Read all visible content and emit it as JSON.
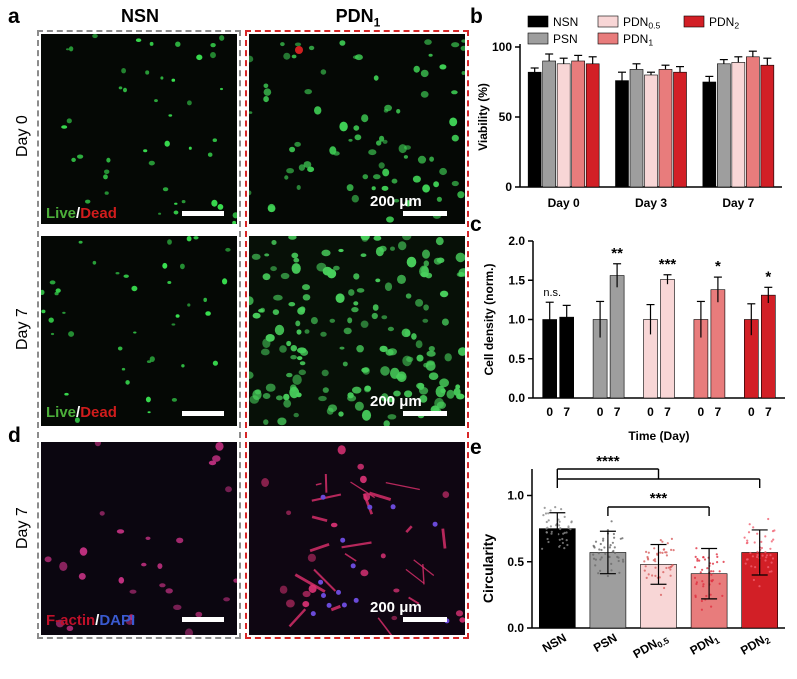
{
  "panel_labels": {
    "a": "a",
    "b": "b",
    "c": "c",
    "d": "d",
    "e": "e"
  },
  "microscopy": {
    "columns": [
      "NSN",
      "PDN"
    ],
    "column_subscript": [
      "",
      "1"
    ],
    "rows": [
      "Day 0",
      "Day 7",
      "Day 7"
    ],
    "live": "Live",
    "slash": "/",
    "dead": "Dead",
    "factin": "F-actin",
    "dapi": "DAPI",
    "scale_text": "200 μm",
    "colors": {
      "nsn_box": "#8c8c8c",
      "pdn_box": "#d62728",
      "live": "#4caf3a",
      "dead": "#d01c1c",
      "factin": "#c0102a",
      "dapi": "#3a5ad0"
    }
  },
  "chart_data": [
    {
      "panel": "b",
      "type": "bar",
      "categories": [
        "Day 0",
        "Day 3",
        "Day 7"
      ],
      "ylabel": "Viability (%)",
      "ylim": [
        0,
        100
      ],
      "yticks": [
        0,
        50,
        100
      ],
      "legend_position": "top",
      "series": [
        {
          "name": "NSN",
          "color": "#000000",
          "values": [
            82,
            76,
            75
          ],
          "errors": [
            3,
            6,
            4
          ]
        },
        {
          "name": "PSN",
          "color": "#9e9e9e",
          "values": [
            90,
            84,
            88
          ],
          "errors": [
            5,
            4,
            3
          ]
        },
        {
          "name": "PDN",
          "sub": "0.5",
          "color": "#f8d6d6",
          "values": [
            88,
            80,
            89
          ],
          "errors": [
            4,
            2,
            4
          ]
        },
        {
          "name": "PDN",
          "sub": "1",
          "color": "#e87c7c",
          "values": [
            90,
            84,
            93
          ],
          "errors": [
            4,
            3,
            4
          ]
        },
        {
          "name": "PDN",
          "sub": "2",
          "color": "#d21f26",
          "values": [
            88,
            82,
            87
          ],
          "errors": [
            5,
            4,
            5
          ]
        }
      ]
    },
    {
      "panel": "c",
      "type": "bar",
      "xlabel": "Time (Day)",
      "ylabel": "Cell density (norm.)",
      "ylim": [
        0,
        2
      ],
      "yticks": [
        "0.0",
        "0.5",
        "1.0",
        "1.5",
        "2.0"
      ],
      "groups": [
        {
          "color": "#000000",
          "labels": [
            "0",
            "7"
          ],
          "values": [
            1.0,
            1.03
          ],
          "errors": [
            0.22,
            0.15
          ],
          "sig": "n.s."
        },
        {
          "color": "#9e9e9e",
          "labels": [
            "0",
            "7"
          ],
          "values": [
            1.0,
            1.56
          ],
          "errors": [
            0.23,
            0.15
          ],
          "sig": "**"
        },
        {
          "color": "#f8d6d6",
          "labels": [
            "0",
            "7"
          ],
          "values": [
            1.0,
            1.51
          ],
          "errors": [
            0.19,
            0.06
          ],
          "sig": "***"
        },
        {
          "color": "#e87c7c",
          "labels": [
            "0",
            "7"
          ],
          "values": [
            1.0,
            1.38
          ],
          "errors": [
            0.23,
            0.16
          ],
          "sig": "*"
        },
        {
          "color": "#d21f26",
          "labels": [
            "0",
            "7"
          ],
          "values": [
            1.0,
            1.31
          ],
          "errors": [
            0.2,
            0.1
          ],
          "sig": "*"
        }
      ]
    },
    {
      "panel": "e",
      "type": "bar",
      "ylabel": "Circularity",
      "ylim": [
        0,
        1.2
      ],
      "yticks": [
        "0.0",
        "0.5",
        "1.0"
      ],
      "categories": [
        {
          "name": "NSN",
          "sub": ""
        },
        {
          "name": "PSN",
          "sub": ""
        },
        {
          "name": "PDN",
          "sub": "0.5"
        },
        {
          "name": "PDN",
          "sub": "1"
        },
        {
          "name": "PDN",
          "sub": "2"
        }
      ],
      "colors": [
        "#000000",
        "#9e9e9e",
        "#f8d6d6",
        "#e87c7c",
        "#d21f26"
      ],
      "values": [
        0.75,
        0.57,
        0.48,
        0.41,
        0.57
      ],
      "errors": [
        0.12,
        0.16,
        0.15,
        0.19,
        0.17
      ],
      "significance": [
        {
          "label": "****",
          "from": 0,
          "to": 4
        },
        {
          "label": "***",
          "from": 1,
          "to": 3
        }
      ]
    }
  ]
}
